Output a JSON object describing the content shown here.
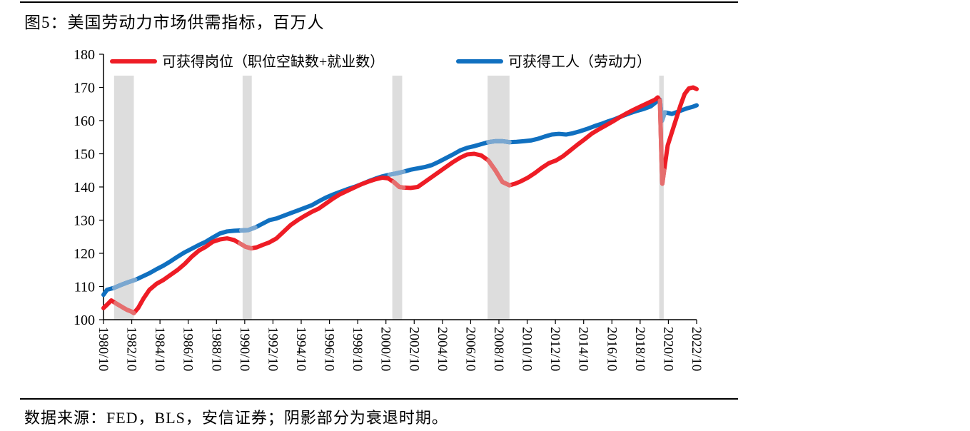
{
  "header": {
    "title": "图5：美国劳动力市场供需指标，百万人"
  },
  "footer": {
    "source": "数据来源：FED，BLS，安信证券；阴影部分为衰退时期。"
  },
  "colors": {
    "jobs": "#ee1c25",
    "jobs_faded": "#e56e6e",
    "workers": "#1070c0",
    "workers_faded": "#7aa7d0",
    "shade": "#dddddd"
  },
  "chart_data": {
    "type": "line",
    "title": "美国劳动力市场供需指标，百万人",
    "xlabel": "",
    "ylabel": "",
    "ylim": [
      100,
      180
    ],
    "yticks": [
      100,
      110,
      120,
      130,
      140,
      150,
      160,
      170,
      180
    ],
    "xlim": [
      1980.75,
      2022.75
    ],
    "xtick_labels": [
      "1980/10",
      "1982/10",
      "1984/10",
      "1986/10",
      "1988/10",
      "1990/10",
      "1992/10",
      "1994/10",
      "1996/10",
      "1998/10",
      "2000/10",
      "2002/10",
      "2004/10",
      "2006/10",
      "2008/10",
      "2010/10",
      "2012/10",
      "2014/10",
      "2016/10",
      "2018/10",
      "2020/10",
      "2022/10"
    ],
    "recessions": [
      {
        "start": 1981.5,
        "end": 1982.9
      },
      {
        "start": 1990.6,
        "end": 1991.25
      },
      {
        "start": 2001.2,
        "end": 2001.9
      },
      {
        "start": 2007.95,
        "end": 2009.5
      },
      {
        "start": 2020.1,
        "end": 2020.42
      }
    ],
    "series": [
      {
        "name": "可获得岗位（职位空缺数+就业数）",
        "x": [
          1980.75,
          1981.0,
          1981.3,
          1981.6,
          1982.0,
          1982.4,
          1982.7,
          1982.9,
          1983.2,
          1983.6,
          1984.0,
          1984.5,
          1985.0,
          1985.5,
          1986.0,
          1986.5,
          1987.0,
          1987.5,
          1988.0,
          1988.5,
          1989.0,
          1989.5,
          1990.0,
          1990.4,
          1990.8,
          1991.2,
          1991.6,
          1992.0,
          1992.5,
          1993.0,
          1993.5,
          1994.0,
          1994.5,
          1995.0,
          1995.5,
          1996.0,
          1996.5,
          1997.0,
          1997.5,
          1998.0,
          1998.5,
          1999.0,
          1999.5,
          2000.0,
          2000.5,
          2000.9,
          2001.3,
          2001.7,
          2002.0,
          2002.5,
          2003.0,
          2003.5,
          2004.0,
          2004.5,
          2005.0,
          2005.5,
          2006.0,
          2006.5,
          2007.0,
          2007.5,
          2008.0,
          2008.5,
          2009.0,
          2009.5,
          2009.9,
          2010.3,
          2010.8,
          2011.3,
          2011.8,
          2012.3,
          2012.8,
          2013.3,
          2013.8,
          2014.3,
          2014.8,
          2015.3,
          2015.8,
          2016.3,
          2016.8,
          2017.3,
          2017.8,
          2018.3,
          2018.8,
          2019.3,
          2019.8,
          2020.0,
          2020.15,
          2020.25,
          2020.32,
          2020.45,
          2020.7,
          2021.0,
          2021.3,
          2021.6,
          2021.9,
          2022.2,
          2022.5,
          2022.75
        ],
        "y": [
          103.5,
          104.5,
          105.8,
          105.0,
          104.0,
          103.0,
          102.5,
          102.0,
          103.5,
          106.5,
          109.0,
          110.8,
          112.0,
          113.5,
          115.0,
          116.8,
          119.0,
          120.8,
          122.0,
          123.5,
          124.2,
          124.5,
          124.0,
          123.0,
          122.0,
          121.5,
          121.8,
          122.5,
          123.3,
          124.5,
          126.5,
          128.5,
          130.0,
          131.3,
          132.5,
          133.5,
          135.0,
          136.5,
          137.8,
          138.8,
          139.8,
          140.8,
          141.6,
          142.3,
          142.8,
          142.6,
          141.5,
          140.0,
          139.8,
          139.7,
          140.0,
          141.5,
          143.0,
          144.5,
          146.0,
          147.5,
          148.8,
          149.8,
          150.0,
          149.5,
          148.0,
          145.0,
          141.5,
          140.5,
          141.0,
          141.7,
          142.8,
          144.2,
          145.8,
          147.2,
          148.0,
          149.3,
          151.0,
          152.7,
          154.3,
          156.0,
          157.3,
          158.5,
          159.7,
          161.0,
          162.2,
          163.3,
          164.3,
          165.3,
          166.3,
          167.0,
          166.0,
          150.0,
          141.0,
          145.0,
          152.5,
          156.5,
          160.5,
          164.5,
          168.0,
          169.7,
          170.0,
          169.5
        ]
      },
      {
        "name": "可获得工人（劳动力）",
        "x": [
          1980.75,
          1981.0,
          1981.5,
          1982.0,
          1982.5,
          1983.0,
          1983.5,
          1984.0,
          1984.5,
          1985.0,
          1985.5,
          1986.0,
          1986.5,
          1987.0,
          1987.5,
          1988.0,
          1988.5,
          1989.0,
          1989.5,
          1990.0,
          1990.5,
          1991.0,
          1991.5,
          1992.0,
          1992.5,
          1993.0,
          1993.5,
          1994.0,
          1994.5,
          1995.0,
          1995.5,
          1996.0,
          1996.5,
          1997.0,
          1997.5,
          1998.0,
          1998.5,
          1999.0,
          1999.5,
          2000.0,
          2000.5,
          2001.0,
          2001.5,
          2002.0,
          2002.5,
          2003.0,
          2003.5,
          2004.0,
          2004.5,
          2005.0,
          2005.5,
          2006.0,
          2006.5,
          2007.0,
          2007.5,
          2008.0,
          2008.5,
          2009.0,
          2009.5,
          2010.0,
          2010.5,
          2011.0,
          2011.5,
          2012.0,
          2012.5,
          2013.0,
          2013.5,
          2014.0,
          2014.5,
          2015.0,
          2015.5,
          2016.0,
          2016.5,
          2017.0,
          2017.5,
          2018.0,
          2018.5,
          2019.0,
          2019.5,
          2020.0,
          2020.15,
          2020.3,
          2020.5,
          2021.0,
          2021.5,
          2022.0,
          2022.5,
          2022.75
        ],
        "y": [
          107.5,
          109.0,
          109.6,
          110.5,
          111.3,
          112.0,
          113.0,
          114.0,
          115.2,
          116.3,
          117.6,
          119.0,
          120.3,
          121.4,
          122.5,
          123.5,
          124.8,
          126.0,
          126.6,
          126.8,
          126.9,
          127.0,
          127.8,
          128.9,
          130.0,
          130.5,
          131.3,
          132.1,
          132.9,
          133.7,
          134.5,
          135.7,
          136.8,
          137.7,
          138.5,
          139.3,
          140.0,
          140.8,
          141.7,
          142.5,
          143.2,
          143.7,
          144.1,
          144.6,
          145.2,
          145.6,
          146.0,
          146.6,
          147.6,
          148.7,
          149.8,
          151.0,
          151.8,
          152.3,
          152.9,
          153.5,
          153.8,
          153.8,
          153.5,
          153.6,
          153.8,
          154.0,
          154.5,
          155.2,
          155.8,
          156.0,
          155.8,
          156.2,
          156.8,
          157.5,
          158.3,
          159.0,
          159.8,
          160.5,
          161.4,
          162.2,
          162.9,
          163.5,
          164.3,
          166.0,
          166.3,
          160.0,
          162.5,
          162.0,
          162.8,
          163.6,
          164.2,
          164.6
        ]
      }
    ],
    "legend": "top"
  }
}
